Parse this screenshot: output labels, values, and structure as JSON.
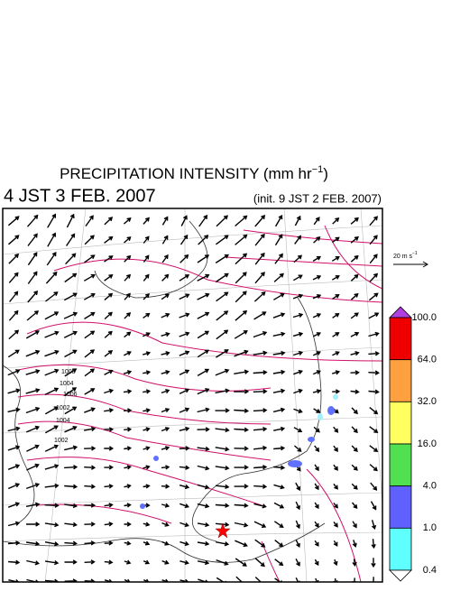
{
  "header": {
    "title": "PRECIPITATION INTENSITY (mm hr",
    "title_exponent": "−1",
    "title_close": ")",
    "valid_time": "4 JST 3 FEB. 2007",
    "init_time": "(init. 9 JST 2 FEB. 2007)"
  },
  "reference_vector": {
    "label": "20 m s",
    "exponent": "−1"
  },
  "contour_labels": [
    "1008",
    "1006",
    "1004",
    "1002",
    "1002",
    "1004"
  ],
  "colorbar": {
    "labels": [
      "100.0",
      "64.0",
      "32.0",
      "16.0",
      "4.0",
      "1.0",
      "0.4"
    ],
    "colors": [
      "#ee0000",
      "#ffa040",
      "#ffff60",
      "#50e050",
      "#6060ff",
      "#60ffff"
    ],
    "over_color": "#b040e0",
    "under_color": "#ffffff"
  }
}
